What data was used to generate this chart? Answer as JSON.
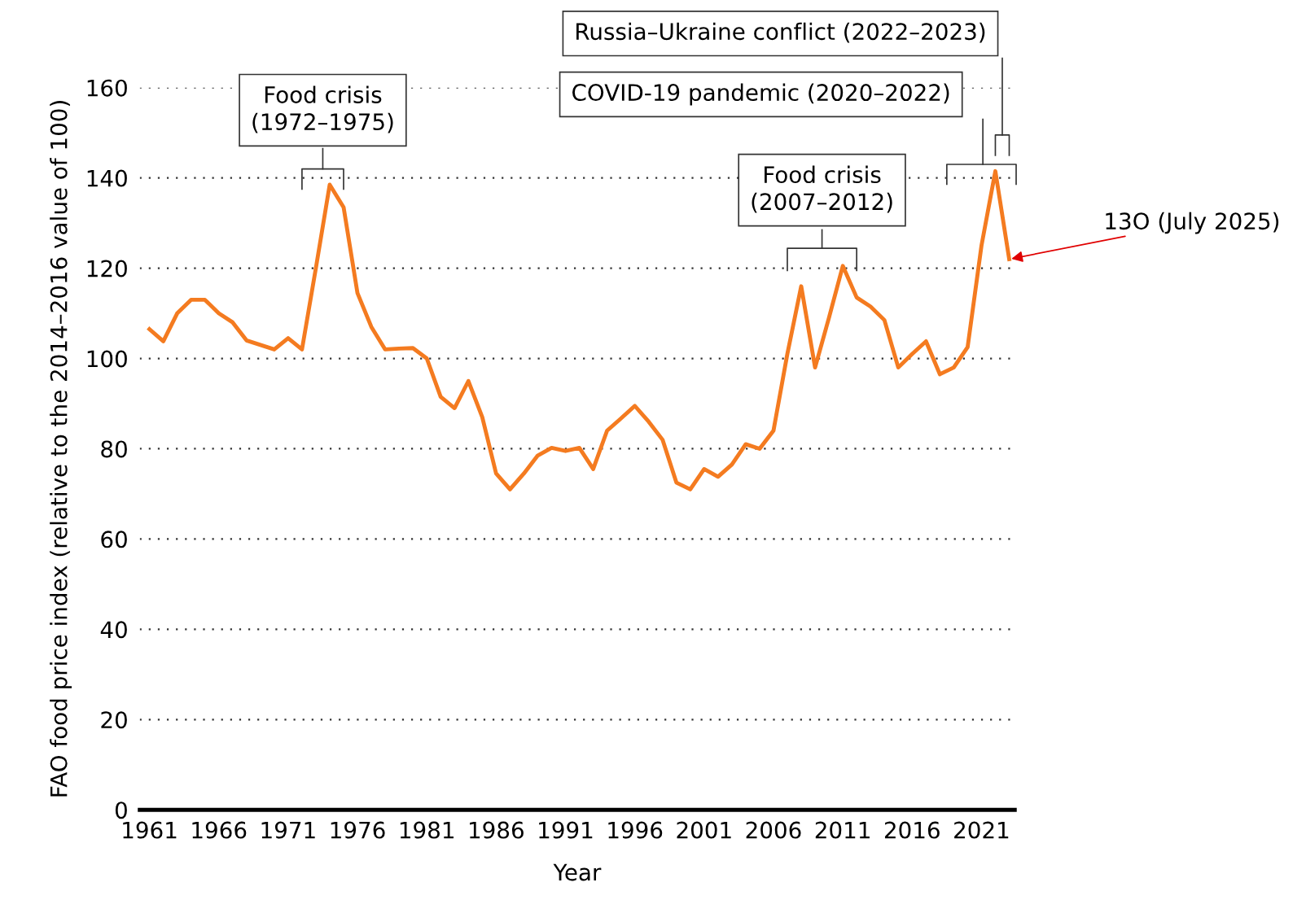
{
  "chart_data": {
    "type": "line",
    "xlabel": "Year",
    "ylabel": "FAO food price index (relative to the 2014–2016 value of 100)",
    "x": [
      1961,
      1962,
      1963,
      1964,
      1965,
      1966,
      1967,
      1968,
      1969,
      1970,
      1971,
      1972,
      1973,
      1974,
      1975,
      1976,
      1977,
      1978,
      1979,
      1980,
      1981,
      1982,
      1983,
      1984,
      1985,
      1986,
      1987,
      1988,
      1989,
      1990,
      1991,
      1992,
      1993,
      1994,
      1995,
      1996,
      1997,
      1998,
      1999,
      2000,
      2001,
      2002,
      2003,
      2004,
      2005,
      2006,
      2007,
      2008,
      2009,
      2010,
      2011,
      2012,
      2013,
      2014,
      2015,
      2016,
      2017,
      2018,
      2019,
      2020,
      2021,
      2022,
      2023
    ],
    "series": [
      {
        "color": "#f47b20",
        "values": [
          106.5,
          103.8,
          110,
          113,
          113,
          110,
          108,
          104,
          103,
          102,
          104.5,
          102,
          120,
          138.5,
          133.5,
          114.5,
          107,
          102,
          102.2,
          102.3,
          100,
          91.5,
          89,
          95,
          87,
          74.5,
          71,
          74.5,
          78.5,
          80.2,
          79.5,
          80.2,
          75.5,
          84,
          86.7,
          89.5,
          86,
          82,
          72.5,
          71,
          75.5,
          73.8,
          76.5,
          81,
          80,
          84,
          101,
          116,
          98,
          109,
          120.5,
          113.5,
          111.5,
          108.5,
          98,
          101,
          103.8,
          96.5,
          98,
          102.5,
          125,
          141.5,
          122
        ]
      }
    ],
    "xlim": [
      1960.3,
      2023.4
    ],
    "xticks": [
      1961,
      1966,
      1971,
      1976,
      1981,
      1986,
      1991,
      1996,
      2001,
      2006,
      2011,
      2016,
      2021
    ],
    "ylim": [
      0,
      160
    ],
    "yticks": [
      0,
      20,
      40,
      60,
      80,
      100,
      120,
      140,
      160
    ],
    "grid": "y",
    "marker": "none",
    "line_style": "solid",
    "annotations": [
      "Food crisis\n(1972–1975)",
      "Food crisis\n(2007–2012)",
      "COVID-19 pandemic (2020–2022)",
      "Russia–Ukraine conflict (2022–2023)",
      {
        "text": "13O (July 2025)",
        "x": 2023,
        "y": 122
      }
    ]
  }
}
